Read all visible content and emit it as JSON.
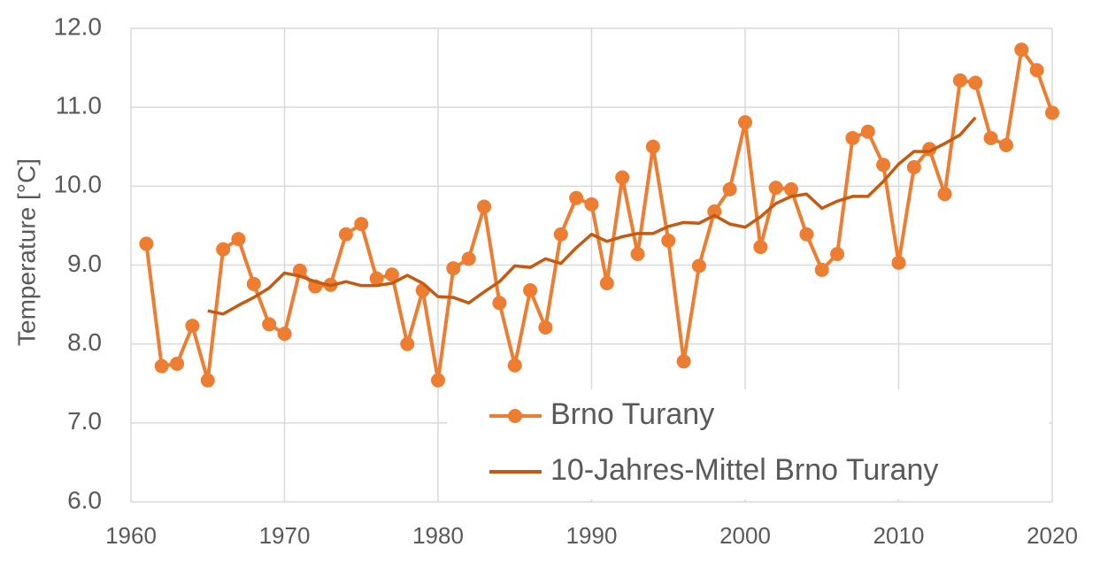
{
  "chart_data": {
    "type": "line",
    "y_label": "Temperature [°C]",
    "x": [
      1961,
      1962,
      1963,
      1964,
      1965,
      1966,
      1967,
      1968,
      1969,
      1970,
      1971,
      1972,
      1973,
      1974,
      1975,
      1976,
      1977,
      1978,
      1979,
      1980,
      1981,
      1982,
      1983,
      1984,
      1985,
      1986,
      1987,
      1988,
      1989,
      1990,
      1991,
      1992,
      1993,
      1994,
      1995,
      1996,
      1997,
      1998,
      1999,
      2000,
      2001,
      2002,
      2003,
      2004,
      2005,
      2006,
      2007,
      2008,
      2009,
      2010,
      2011,
      2012,
      2013,
      2014,
      2015,
      2016,
      2017,
      2018,
      2019,
      2020
    ],
    "series": [
      {
        "name": "Brno Turany",
        "color": "#ed7d31",
        "markers": true,
        "values": [
          9.27,
          7.72,
          7.75,
          8.23,
          7.54,
          9.2,
          9.33,
          8.76,
          8.25,
          8.13,
          8.93,
          8.73,
          8.75,
          9.39,
          9.52,
          8.83,
          8.88,
          8.0,
          8.68,
          7.54,
          8.96,
          9.08,
          9.74,
          8.52,
          7.73,
          8.68,
          8.21,
          9.39,
          9.85,
          9.77,
          8.77,
          10.11,
          9.14,
          10.5,
          9.31,
          7.78,
          8.99,
          9.68,
          9.96,
          10.81,
          9.23,
          9.98,
          9.96,
          9.39,
          8.94,
          9.14,
          10.61,
          10.69,
          10.27,
          9.03,
          10.24,
          10.47,
          9.9,
          11.34,
          11.31,
          10.61,
          10.52,
          11.73,
          11.47,
          10.93
        ]
      },
      {
        "name": "10-Jahres-Mittel Brno Turany",
        "color": "#c55a11",
        "markers": false,
        "values": [
          null,
          null,
          null,
          null,
          8.42,
          8.38,
          8.49,
          8.59,
          8.71,
          8.9,
          8.86,
          8.79,
          8.74,
          8.79,
          8.74,
          8.74,
          8.77,
          8.87,
          8.77,
          8.6,
          8.59,
          8.52,
          8.66,
          8.79,
          8.99,
          8.97,
          9.08,
          9.02,
          9.22,
          9.39,
          9.3,
          9.36,
          9.4,
          9.4,
          9.49,
          9.54,
          9.53,
          9.63,
          9.52,
          9.48,
          9.61,
          9.78,
          9.87,
          9.9,
          9.72,
          9.81,
          9.87,
          9.87,
          10.06,
          10.28,
          10.44,
          10.44,
          10.54,
          10.65,
          10.87,
          null,
          null,
          null,
          null,
          null
        ]
      }
    ],
    "xlim": [
      1960,
      2020
    ],
    "xticks": [
      1960,
      1970,
      1980,
      1990,
      2000,
      2010,
      2020
    ],
    "ylim": [
      6,
      12
    ],
    "yticks": [
      {
        "value": 6,
        "label": "6.0"
      },
      {
        "value": 7,
        "label": "7.0"
      },
      {
        "value": 8,
        "label": "8.0"
      },
      {
        "value": 9,
        "label": "9.0"
      },
      {
        "value": 10,
        "label": "10.0"
      },
      {
        "value": 11,
        "label": "11.0"
      },
      {
        "value": 12,
        "label": "12.0"
      }
    ],
    "grid": true,
    "legend": "bottom-right"
  }
}
